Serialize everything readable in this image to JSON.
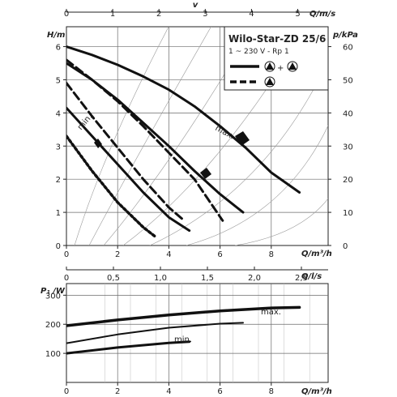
{
  "chart_data": [
    {
      "type": "line",
      "title": "Wilo-Star-ZD 25/6",
      "subtitle": "1 ~ 230 V - Rp 1",
      "xlabel": "Q/m³/h",
      "ylabel": "H/m",
      "y2label": "p/kPa",
      "top_axis_label": "v",
      "top_axis2_label": "Q/m/s",
      "bottom2_axis_label": "Q/l/s",
      "xlim": [
        0,
        10
      ],
      "ylim": [
        0,
        6.6
      ],
      "y2lim": [
        0,
        66
      ],
      "x_ticks": [
        "0",
        "2",
        "4",
        "6",
        "8"
      ],
      "y_ticks": [
        "0",
        "1",
        "2",
        "3",
        "4",
        "5",
        "6"
      ],
      "y2_ticks": [
        "0",
        "10",
        "20",
        "30",
        "40",
        "50",
        "60"
      ],
      "v_ticks": [
        "0",
        "1",
        "2",
        "3",
        "4",
        "5"
      ],
      "ls_ticks": [
        "0",
        "0,5",
        "1,0",
        "1,5",
        "2,0",
        "2,5"
      ],
      "legend": {
        "solid_label": "+",
        "dashed_label": "",
        "placement": "top-right"
      },
      "annotations": [
        "max.",
        "min."
      ],
      "series": [
        {
          "style": "solid",
          "x": [
            0,
            1,
            2,
            3,
            4,
            5,
            6,
            7,
            8,
            9.1
          ],
          "y": [
            6.0,
            5.75,
            5.45,
            5.1,
            4.7,
            4.2,
            3.6,
            2.95,
            2.2,
            1.6
          ]
        },
        {
          "style": "solid",
          "x": [
            0,
            1,
            2,
            3,
            4,
            5,
            6,
            6.9
          ],
          "y": [
            5.5,
            5.0,
            4.4,
            3.7,
            3.0,
            2.25,
            1.55,
            1.0
          ]
        },
        {
          "style": "solid",
          "x": [
            0,
            1,
            2,
            3,
            4,
            4.8
          ],
          "y": [
            4.15,
            3.3,
            2.45,
            1.6,
            0.85,
            0.45
          ]
        },
        {
          "style": "dashed",
          "x": [
            0,
            1,
            2,
            3,
            4,
            5,
            6.1
          ],
          "y": [
            5.6,
            5.0,
            4.35,
            3.6,
            2.8,
            2.0,
            0.75
          ]
        },
        {
          "style": "dashed",
          "x": [
            0,
            1,
            2,
            3,
            4,
            4.6
          ],
          "y": [
            4.9,
            3.9,
            2.95,
            2.0,
            1.15,
            0.75
          ]
        },
        {
          "style": "dotted",
          "x": [
            0,
            1,
            2,
            3,
            3.5
          ],
          "y": [
            3.3,
            2.25,
            1.3,
            0.55,
            0.25
          ]
        }
      ]
    },
    {
      "type": "line",
      "xlabel": "Q/m³/h",
      "ylabel": "P₁ /W",
      "xlim": [
        0,
        10
      ],
      "ylim": [
        0,
        340
      ],
      "x_ticks": [
        "0",
        "2",
        "4",
        "6",
        "8"
      ],
      "y_ticks": [
        "100",
        "200",
        "300"
      ],
      "annotations": [
        "max.",
        "min."
      ],
      "series": [
        {
          "name": "max.",
          "x": [
            0,
            2,
            4,
            6,
            8,
            9.1
          ],
          "y": [
            195,
            215,
            232,
            246,
            256,
            258
          ]
        },
        {
          "x": [
            0,
            2,
            4,
            6,
            6.9
          ],
          "y": [
            135,
            165,
            188,
            202,
            205
          ]
        },
        {
          "name": "min.",
          "x": [
            0,
            2,
            4,
            4.8
          ],
          "y": [
            100,
            120,
            136,
            140
          ]
        }
      ]
    }
  ]
}
